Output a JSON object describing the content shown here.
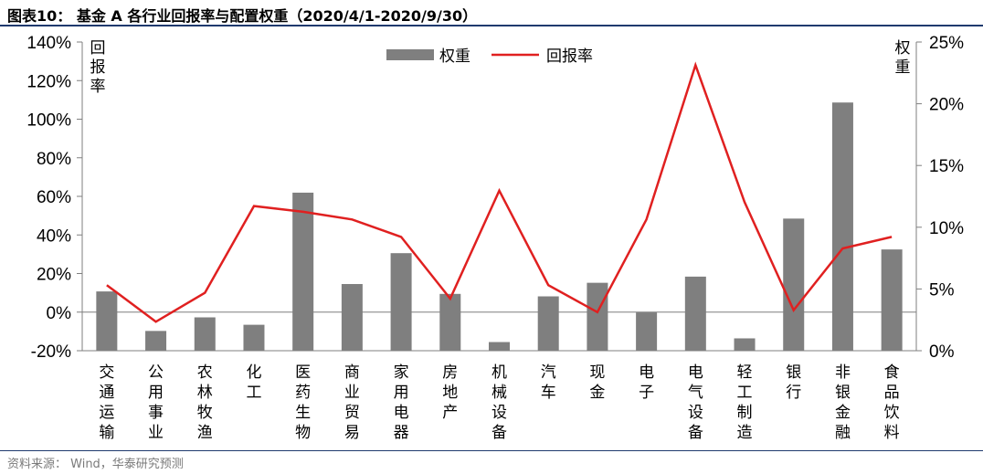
{
  "title": "图表10：  基金 A 各行业回报率与配置权重（2020/4/1-2020/9/30）",
  "source": "资料来源：  Wind，华泰研究预测",
  "chart_data": {
    "type": "bar+line",
    "categories": [
      "交通运输",
      "公用事业",
      "农林牧渔",
      "化工",
      "医药生物",
      "商业贸易",
      "家用电器",
      "房地产",
      "机械设备",
      "汽车",
      "现金",
      "电子",
      "电气设备",
      "轻工制造",
      "银行",
      "非银金融",
      "食品饮料"
    ],
    "series": [
      {
        "name": "权重",
        "type": "bar",
        "axis": "right",
        "values": [
          4.8,
          1.6,
          2.7,
          2.1,
          12.8,
          5.4,
          7.9,
          4.6,
          0.7,
          4.4,
          5.5,
          3.1,
          6.0,
          1.0,
          10.7,
          20.1,
          8.2
        ]
      },
      {
        "name": "回报率",
        "type": "line",
        "axis": "left",
        "values": [
          14,
          -5,
          10,
          55,
          52,
          48,
          39,
          7,
          63,
          14,
          0,
          48,
          128,
          57,
          1,
          33,
          39
        ]
      }
    ],
    "y_left": {
      "label": "回报率",
      "min": -20,
      "max": 140,
      "step": 20,
      "tick_format": "percent"
    },
    "y_right": {
      "label": "权重",
      "min": 0,
      "max": 25,
      "step": 5,
      "tick_format": "percent"
    },
    "legend": "top-center",
    "grid": false,
    "colors": {
      "bar": "#7f7f7f",
      "line": "#e02020",
      "axis": "#7f7f7f"
    }
  }
}
